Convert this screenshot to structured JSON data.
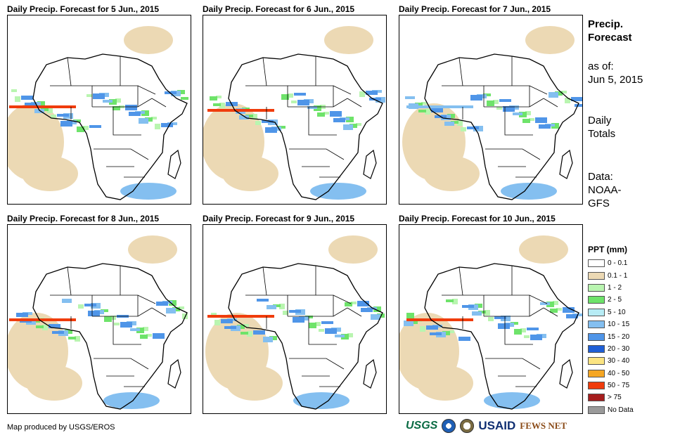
{
  "panels": [
    {
      "title": "Daily Precip. Forecast for 5 Jun., 2015"
    },
    {
      "title": "Daily Precip. Forecast for 6 Jun., 2015"
    },
    {
      "title": "Daily Precip. Forecast for 7 Jun., 2015"
    },
    {
      "title": "Daily Precip. Forecast for 8 Jun., 2015"
    },
    {
      "title": "Daily Precip. Forecast for 9 Jun., 2015"
    },
    {
      "title": "Daily Precip. Forecast for 10 Jun., 2015"
    }
  ],
  "side": {
    "heading_line1": "Precip.",
    "heading_line2": "Forecast",
    "asof_line1": "as of:",
    "asof_line2": "Jun 5, 2015",
    "totals_line1": "Daily",
    "totals_line2": "Totals",
    "data_line1": "Data:",
    "data_line2": "NOAA-",
    "data_line3": "GFS"
  },
  "legend": {
    "title": "PPT (mm)",
    "items": [
      {
        "label": "0 - 0.1",
        "color": "#ffffff"
      },
      {
        "label": "0.1 - 1",
        "color": "#ecd9b4"
      },
      {
        "label": "1 - 2",
        "color": "#b9f5b0"
      },
      {
        "label": "2 - 5",
        "color": "#6ee36a"
      },
      {
        "label": "5 - 10",
        "color": "#b7ecf5"
      },
      {
        "label": "10 - 15",
        "color": "#84bff0"
      },
      {
        "label": "15 - 20",
        "color": "#4f95e8"
      },
      {
        "label": "20 - 30",
        "color": "#1f5fd6"
      },
      {
        "label": "30 - 40",
        "color": "#fbe482"
      },
      {
        "label": "40 - 50",
        "color": "#f5a623"
      },
      {
        "label": "50 - 75",
        "color": "#f03c0c"
      },
      {
        "label": "> 75",
        "color": "#a51d1d"
      },
      {
        "label": "No Data",
        "color": "#9a9a9a"
      }
    ]
  },
  "footer": {
    "credit": "Map produced by USGS/EROS",
    "logos": [
      "USGS",
      "NOAA",
      "USAID",
      "FEWS NET"
    ]
  }
}
